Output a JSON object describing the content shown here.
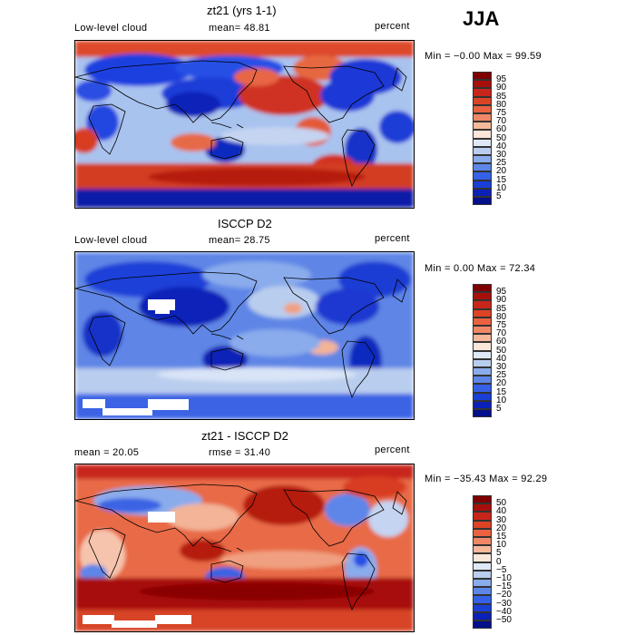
{
  "season": "JJA",
  "panels": [
    {
      "title": "zt21 (yrs 1-1)",
      "left_label": "Low-level cloud",
      "mid_label": "mean=  48.81",
      "right_label": "percent",
      "min_max": "Min =  −0.00 Max =  99.59",
      "colorbar": {
        "labels": [
          "95",
          "90",
          "85",
          "80",
          "75",
          "70",
          "60",
          "50",
          "40",
          "30",
          "25",
          "20",
          "15",
          "10",
          "5"
        ],
        "colors": [
          "#7f0000",
          "#a80f0a",
          "#c8261a",
          "#dc4426",
          "#ea6240",
          "#f08866",
          "#f6b89a",
          "#fbe6da",
          "#dfe8f6",
          "#b9cdee",
          "#8aacec",
          "#5d86e8",
          "#3561e6",
          "#1a3fd6",
          "#0a20b6",
          "#040f8a"
        ]
      }
    },
    {
      "title": "ISCCP D2",
      "left_label": "Low-level cloud",
      "mid_label": "mean=  28.75",
      "right_label": "percent",
      "min_max": "Min =   0.00 Max =  72.34",
      "colorbar": {
        "labels": [
          "95",
          "90",
          "85",
          "80",
          "75",
          "70",
          "60",
          "50",
          "40",
          "30",
          "25",
          "20",
          "15",
          "10",
          "5"
        ],
        "colors": [
          "#7f0000",
          "#a80f0a",
          "#c8261a",
          "#dc4426",
          "#ea6240",
          "#f08866",
          "#f6b89a",
          "#fbe6da",
          "#dfe8f6",
          "#b9cdee",
          "#8aacec",
          "#5d86e8",
          "#3561e6",
          "#1a3fd6",
          "#0a20b6",
          "#040f8a"
        ]
      }
    },
    {
      "title": "zt21 - ISCCP D2",
      "left_label": "mean =  20.05",
      "mid_label": "rmse =  31.40",
      "right_label": "percent",
      "min_max": "Min = −35.43 Max =  92.29",
      "colorbar": {
        "labels": [
          "50",
          "40",
          "30",
          "20",
          "15",
          "10",
          "5",
          "0",
          "−5",
          "−10",
          "−15",
          "−20",
          "−30",
          "−40",
          "−50"
        ],
        "colors": [
          "#7f0000",
          "#a80f0a",
          "#c8261a",
          "#dc4426",
          "#ea6240",
          "#f08866",
          "#f6b89a",
          "#fbe6da",
          "#dfe8f6",
          "#b9cdee",
          "#8aacec",
          "#5d86e8",
          "#3561e6",
          "#1a3fd6",
          "#0a20b6",
          "#040f8a"
        ]
      }
    }
  ]
}
